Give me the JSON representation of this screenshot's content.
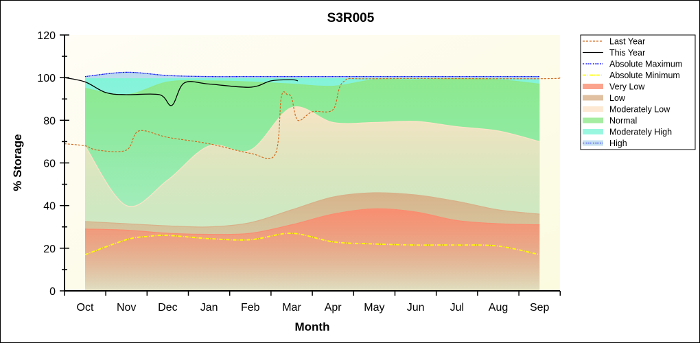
{
  "chart_data": {
    "type": "area",
    "title": "S3R005",
    "xlabel": "Month",
    "ylabel": "% Storage",
    "ylim": [
      0,
      120
    ],
    "yticks": [
      0,
      20,
      40,
      60,
      80,
      100,
      120
    ],
    "categories": [
      "Oct",
      "Nov",
      "Dec",
      "Jan",
      "Feb",
      "Mar",
      "Apr",
      "May",
      "Jun",
      "Jul",
      "Aug",
      "Sep"
    ],
    "legend_position": "right",
    "band_x": [
      0,
      1,
      2,
      3,
      4,
      5,
      6,
      7,
      8,
      9,
      10,
      11
    ],
    "bands": [
      {
        "name": "Very Low",
        "color": "#fa8c70",
        "upper": [
          29,
          28.5,
          27,
          26.5,
          27,
          31,
          36,
          38.5,
          37,
          33,
          31.5,
          31
        ]
      },
      {
        "name": "Low",
        "color": "#d8b088",
        "upper": [
          32.5,
          31.5,
          30.5,
          30,
          32,
          38,
          44,
          46,
          45,
          42,
          38,
          36
        ]
      },
      {
        "name": "Moderately Low",
        "color": "#fde3c8",
        "upper": [
          68,
          40,
          52,
          68,
          66,
          86,
          79,
          79,
          79.5,
          77,
          75,
          70
        ]
      },
      {
        "name": "Normal",
        "color": "#8ee88a",
        "upper": [
          95,
          92,
          98,
          98.5,
          98,
          97,
          96,
          99,
          99,
          99.5,
          99,
          97
        ]
      },
      {
        "name": "Moderately High",
        "color": "#80f5d8",
        "upper": [
          99.5,
          99.5,
          99.5,
          99.5,
          99.5,
          99.5,
          99.5,
          99.5,
          99.5,
          99.5,
          99.5,
          99
        ]
      },
      {
        "name": "High",
        "color": "#b8d8ee",
        "upper": [
          100.5,
          102.5,
          101,
          100.5,
          100.5,
          100.5,
          100.5,
          100.5,
          100.5,
          100.5,
          100.5,
          100.5
        ]
      }
    ],
    "series": [
      {
        "name": "Last Year",
        "color": "#d2691e",
        "x": [
          -0.5,
          0,
          0.3,
          1,
          1.3,
          2,
          3,
          4,
          4.6,
          4.75,
          4.9,
          5,
          5.15,
          5.5,
          6,
          6.25,
          7,
          11,
          11.5
        ],
        "y": [
          69,
          68,
          66,
          66,
          75,
          72,
          69,
          64.5,
          64,
          91,
          92,
          90.5,
          80,
          84,
          85,
          98,
          99.5,
          99.5,
          100
        ]
      },
      {
        "name": "This Year",
        "color": "#000000",
        "x": [
          -0.5,
          0,
          0.5,
          1,
          1.8,
          2.1,
          2.4,
          3,
          4,
          4.5,
          5,
          5.15
        ],
        "y": [
          100,
          98,
          93,
          92,
          92,
          87,
          97.5,
          97,
          95.5,
          98.5,
          99,
          98.5
        ]
      },
      {
        "name": "Absolute Maximum",
        "color": "#0000ff",
        "x": [
          0,
          1,
          2,
          3,
          4,
          5,
          6,
          7,
          8,
          9,
          10,
          11
        ],
        "y": [
          100.5,
          102.5,
          101,
          100.5,
          100.5,
          100.5,
          100.5,
          100.5,
          100.5,
          100.5,
          100.5,
          100.5
        ]
      },
      {
        "name": "Absolute Minimum",
        "color": "#ffff00",
        "x": [
          0,
          1,
          1.5,
          2,
          3,
          4,
          5,
          6,
          7,
          8,
          9,
          10,
          11
        ],
        "y": [
          17,
          24,
          25.5,
          26,
          24.5,
          24,
          27,
          23,
          22,
          21.5,
          21.5,
          21,
          17
        ]
      }
    ],
    "legend": [
      "Last Year",
      "This Year",
      "Absolute Maximum",
      "Absolute Minimum",
      "Very Low",
      "Low",
      "Moderately Low",
      "Normal",
      "Moderately High",
      "High"
    ]
  }
}
